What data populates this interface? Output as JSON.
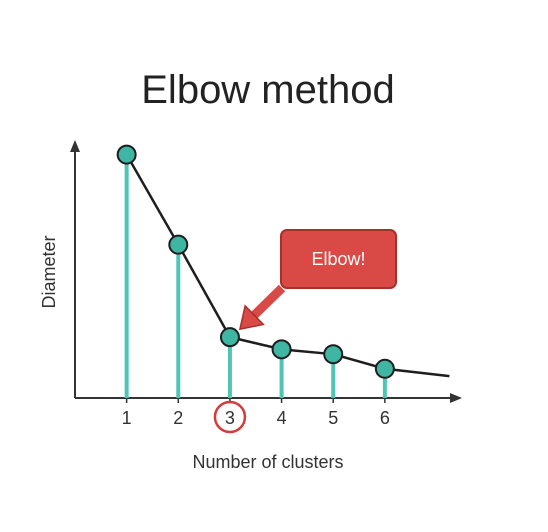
{
  "chart_data": {
    "type": "line",
    "title": "Elbow method",
    "xlabel": "Number of clusters",
    "ylabel": "Diameter",
    "x": [
      1,
      2,
      3,
      4,
      5,
      6
    ],
    "values": [
      100,
      63,
      25,
      20,
      18,
      12
    ],
    "tail_value": 9,
    "xlim": [
      0,
      7.3
    ],
    "ylim": [
      0,
      106
    ],
    "grid": false,
    "highlighted_x": 3,
    "annotation": {
      "text": "Elbow!",
      "points_to_x": 3
    },
    "colors": {
      "line": "#1e1e1e",
      "stem": "#4fc6b4",
      "marker_fill": "#3fb5a3",
      "marker_stroke": "#1e1e1e",
      "highlight_circle": "#d63a3a",
      "callout_fill": "#d94a47",
      "callout_stroke": "#a8302c",
      "axis": "#333333"
    }
  }
}
